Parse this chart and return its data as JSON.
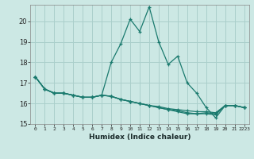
{
  "xlabel": "Humidex (Indice chaleur)",
  "background_color": "#cce8e4",
  "grid_color": "#aacfcb",
  "line_color": "#1a7a6e",
  "series": [
    [
      17.3,
      16.7,
      16.5,
      16.5,
      16.4,
      16.3,
      16.3,
      16.4,
      18.0,
      18.9,
      20.1,
      19.5,
      20.7,
      19.0,
      17.9,
      18.3,
      17.0,
      16.5,
      15.8,
      15.3,
      15.9,
      15.9,
      15.8
    ],
    [
      17.3,
      16.7,
      16.5,
      16.5,
      16.4,
      16.3,
      16.3,
      16.4,
      16.35,
      16.2,
      16.1,
      16.0,
      15.9,
      15.85,
      15.75,
      15.7,
      15.65,
      15.6,
      15.6,
      15.55,
      15.9,
      15.9,
      15.8
    ],
    [
      17.3,
      16.7,
      16.5,
      16.5,
      16.4,
      16.3,
      16.3,
      16.4,
      16.35,
      16.2,
      16.1,
      16.0,
      15.9,
      15.8,
      15.7,
      15.65,
      15.55,
      15.5,
      15.5,
      15.45,
      15.9,
      15.9,
      15.8
    ],
    [
      17.3,
      16.7,
      16.5,
      16.5,
      16.4,
      16.3,
      16.3,
      16.4,
      16.35,
      16.2,
      16.1,
      16.0,
      15.9,
      15.8,
      15.7,
      15.6,
      15.5,
      15.5,
      15.55,
      15.5,
      15.9,
      15.9,
      15.8
    ]
  ],
  "x_ticks": [
    0,
    1,
    2,
    3,
    4,
    5,
    6,
    7,
    8,
    9,
    10,
    11,
    12,
    13,
    14,
    15,
    16,
    17,
    18,
    19,
    20,
    21,
    22
  ],
  "x_tick_labels": [
    "0",
    "1",
    "2",
    "3",
    "4",
    "5",
    "6",
    "7",
    "8",
    "9",
    "10",
    "11",
    "12",
    "13",
    "14",
    "15",
    "16",
    "17",
    "18",
    "19",
    "20",
    "21",
    "2223"
  ],
  "ylim": [
    15.0,
    20.8
  ],
  "yticks": [
    15,
    16,
    17,
    18,
    19,
    20
  ]
}
